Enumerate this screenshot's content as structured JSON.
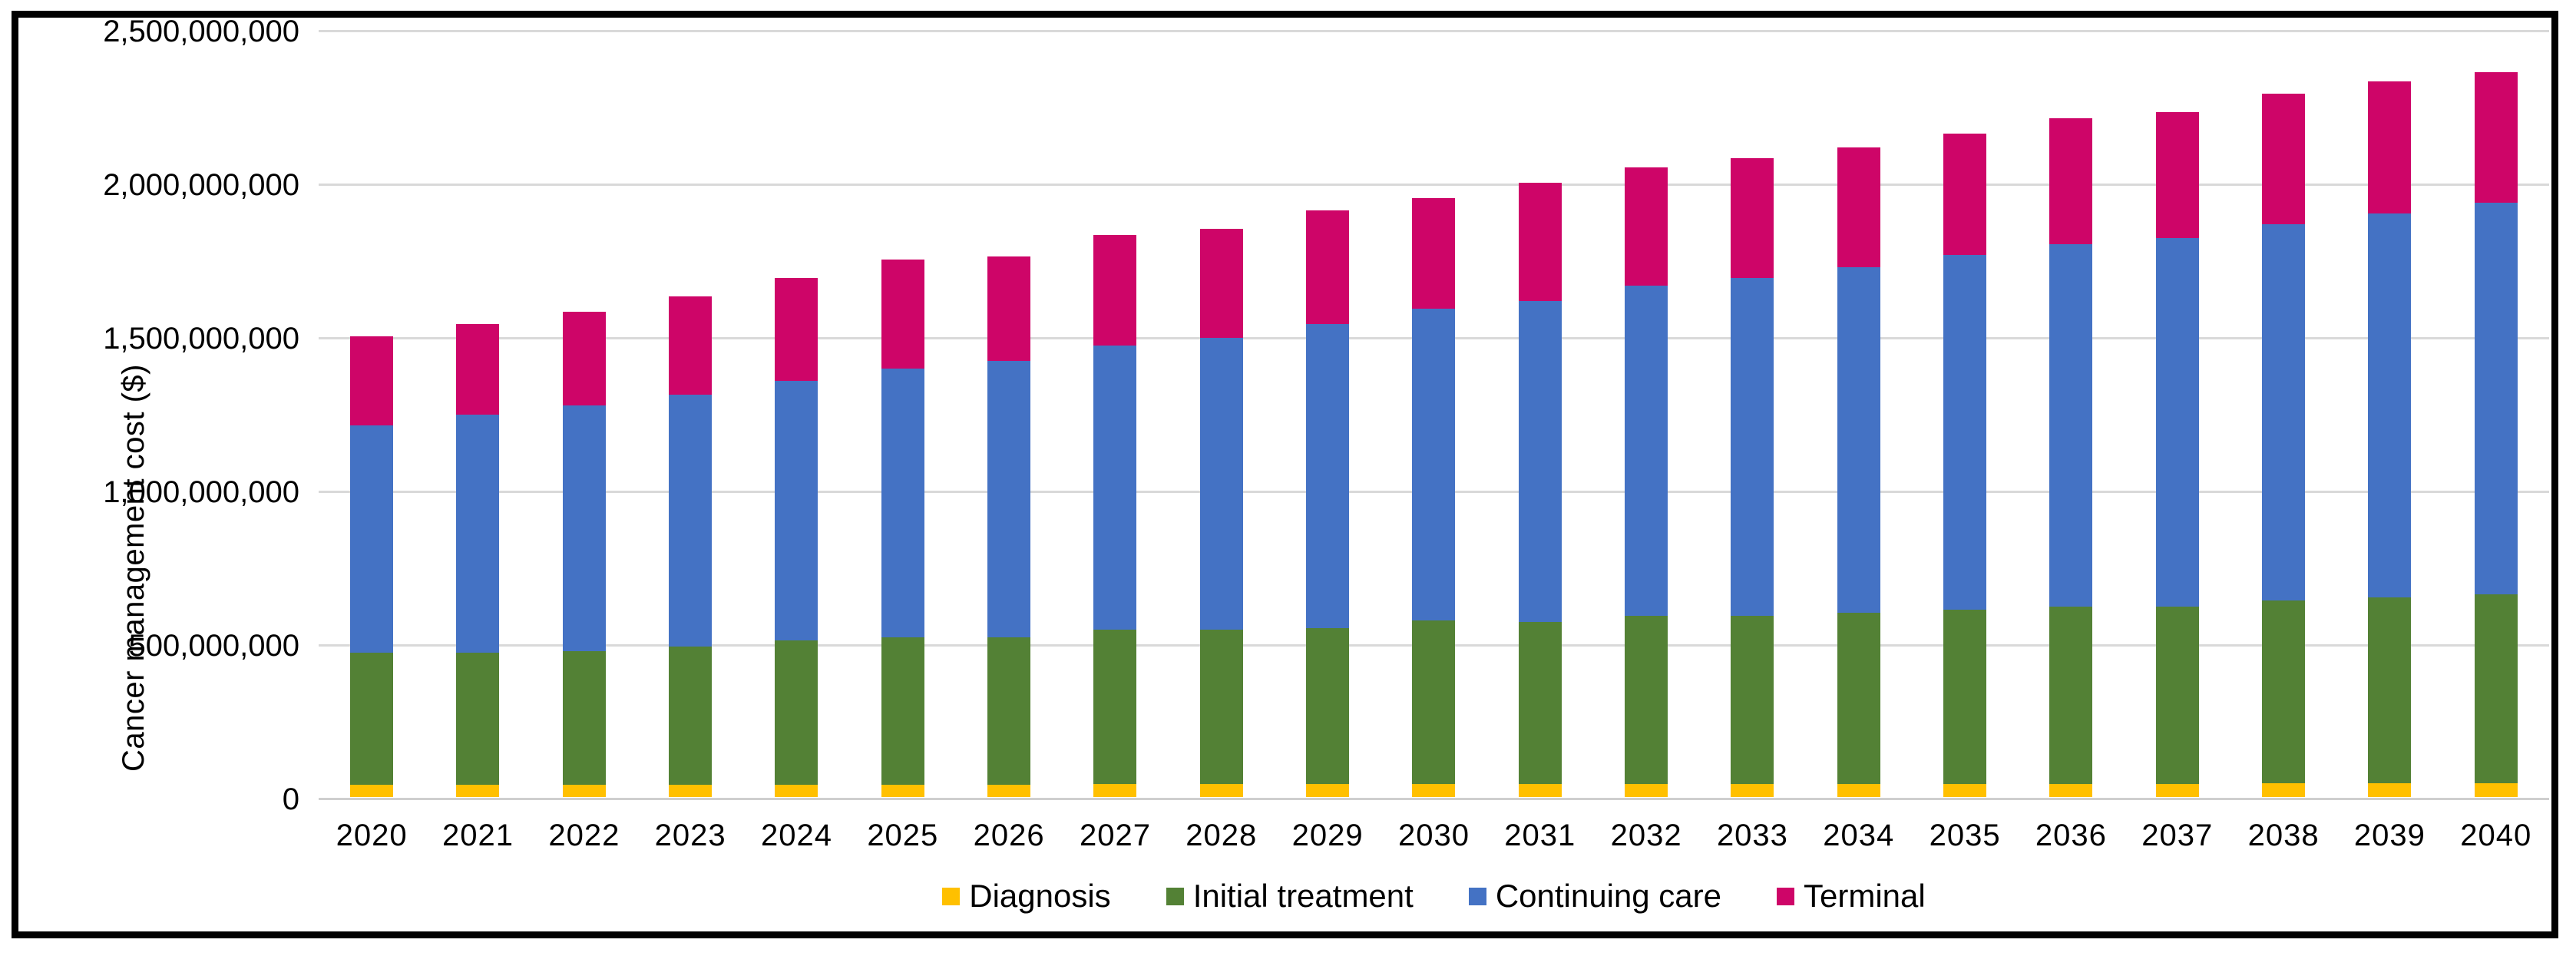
{
  "figure": {
    "background": "#ffffff",
    "border_color": "#000000",
    "gridline_color": "#d9d9d9",
    "text_color": "#000000"
  },
  "chart_data": {
    "type": "bar",
    "stacked": true,
    "title": "",
    "xlabel": "",
    "ylabel": "Cancer management cost ($)",
    "ylim": [
      0,
      2500000000
    ],
    "ytick_step": 500000000,
    "ytick_labels": [
      "0",
      "500,000,000",
      "1,000,000,000",
      "1,500,000,000",
      "2,000,000,000",
      "2,500,000,000"
    ],
    "grid": true,
    "legend_position": "bottom",
    "categories": [
      "2020",
      "2021",
      "2022",
      "2023",
      "2024",
      "2025",
      "2026",
      "2027",
      "2028",
      "2029",
      "2030",
      "2031",
      "2032",
      "2033",
      "2034",
      "2035",
      "2036",
      "2037",
      "2038",
      "2039",
      "2040"
    ],
    "series": [
      {
        "name": "Diagnosis",
        "color": "#FFC000",
        "values": [
          40000000,
          40000000,
          40000000,
          40000000,
          40000000,
          40000000,
          40000000,
          42000000,
          42000000,
          42000000,
          42000000,
          42000000,
          42000000,
          42000000,
          42000000,
          42000000,
          42000000,
          42000000,
          44000000,
          44000000,
          44000000
        ]
      },
      {
        "name": "Initial treatment",
        "color": "#538135",
        "values": [
          430000000,
          430000000,
          435000000,
          450000000,
          470000000,
          480000000,
          480000000,
          503000000,
          503000000,
          508000000,
          533000000,
          528000000,
          548000000,
          548000000,
          558000000,
          568000000,
          578000000,
          578000000,
          596000000,
          606000000,
          616000000
        ]
      },
      {
        "name": "Continuing care",
        "color": "#4472C4",
        "values": [
          740000000,
          775000000,
          800000000,
          820000000,
          845000000,
          875000000,
          900000000,
          925000000,
          950000000,
          990000000,
          1015000000,
          1045000000,
          1075000000,
          1100000000,
          1125000000,
          1155000000,
          1180000000,
          1200000000,
          1225000000,
          1250000000,
          1275000000
        ]
      },
      {
        "name": "Terminal",
        "color": "#CE0568",
        "values": [
          290000000,
          295000000,
          305000000,
          320000000,
          335000000,
          355000000,
          340000000,
          360000000,
          355000000,
          370000000,
          360000000,
          385000000,
          385000000,
          390000000,
          390000000,
          395000000,
          410000000,
          410000000,
          425000000,
          430000000,
          425000000
        ]
      }
    ]
  }
}
